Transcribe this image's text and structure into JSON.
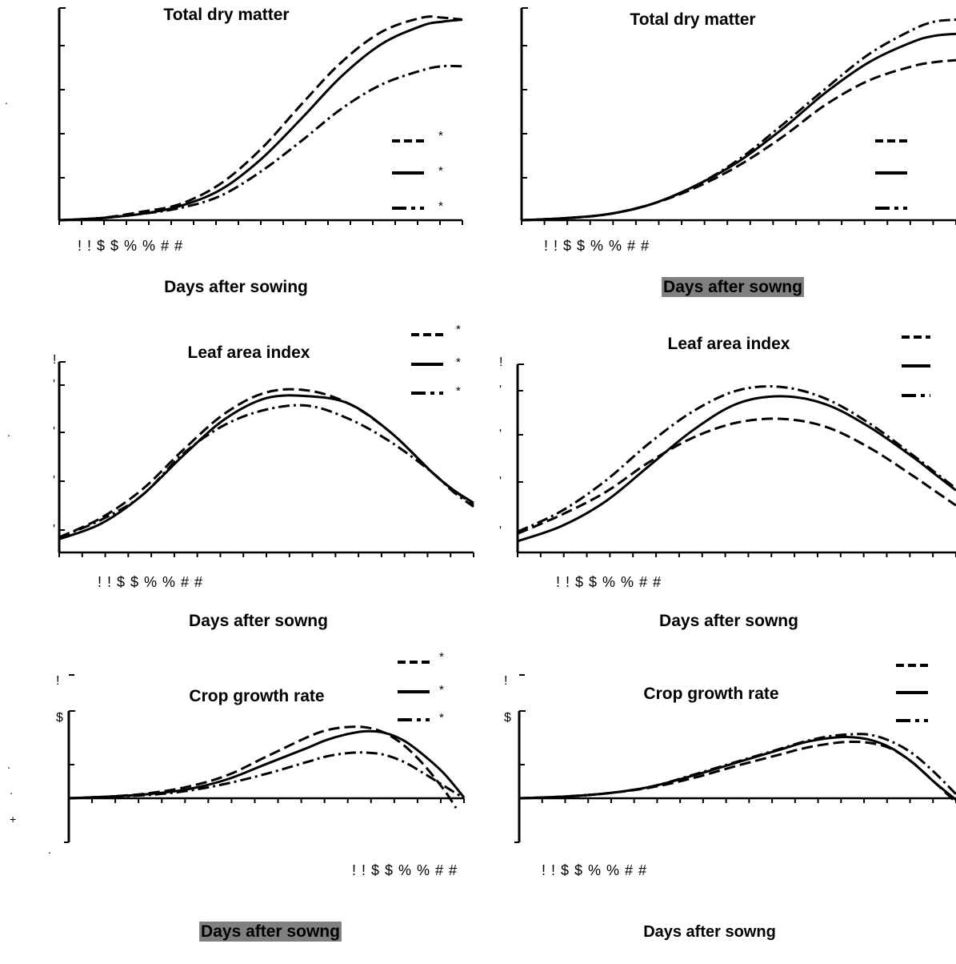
{
  "figure": {
    "stray_marks": [
      ".",
      ".",
      ".",
      ".",
      "+",
      "."
    ]
  },
  "chart_data": [
    {
      "type": "line",
      "title": "Total dry matter",
      "xlabel": "Days after sowing",
      "xlabel_highlight": false,
      "x_tick_text": "! ! $ $ % % # #",
      "y_tick_labels": [],
      "xlim": [
        0,
        100
      ],
      "ylim": [
        0,
        100
      ],
      "legend": {
        "position": "right",
        "markers": [
          "*",
          "*",
          "*"
        ]
      },
      "series": [
        {
          "style": "dashed",
          "x": [
            0,
            10,
            20,
            30,
            40,
            50,
            60,
            70,
            80,
            90,
            95,
            100
          ],
          "y": [
            0,
            1,
            4,
            8,
            18,
            35,
            57,
            78,
            93,
            100,
            100,
            99
          ]
        },
        {
          "style": "solid",
          "x": [
            0,
            10,
            20,
            30,
            40,
            50,
            60,
            70,
            80,
            90,
            95,
            100
          ],
          "y": [
            0,
            1,
            3,
            7,
            15,
            30,
            50,
            71,
            87,
            96,
            98,
            99
          ]
        },
        {
          "style": "dashdot",
          "x": [
            0,
            10,
            20,
            30,
            40,
            50,
            60,
            70,
            80,
            90,
            95,
            100
          ],
          "y": [
            0,
            1,
            3,
            6,
            12,
            24,
            39,
            55,
            67,
            74,
            76,
            76
          ]
        }
      ]
    },
    {
      "type": "line",
      "title": "Total dry matter",
      "xlabel": "Days after sowng",
      "xlabel_highlight": true,
      "x_tick_text": "! ! $ $ % % # #",
      "y_tick_labels": [],
      "xlim": [
        0,
        100
      ],
      "ylim": [
        0,
        100
      ],
      "legend": {
        "position": "right",
        "markers": []
      },
      "series": [
        {
          "style": "dashed",
          "x": [
            0,
            10,
            20,
            30,
            40,
            50,
            60,
            70,
            80,
            90,
            95,
            100
          ],
          "y": [
            0,
            1,
            3,
            8,
            16,
            27,
            41,
            57,
            69,
            76,
            78,
            79
          ]
        },
        {
          "style": "solid",
          "x": [
            0,
            10,
            20,
            30,
            40,
            50,
            60,
            70,
            80,
            90,
            95,
            100
          ],
          "y": [
            0,
            1,
            3,
            8,
            17,
            29,
            45,
            63,
            78,
            88,
            91,
            92
          ]
        },
        {
          "style": "dashdot",
          "x": [
            0,
            10,
            20,
            30,
            40,
            50,
            60,
            70,
            80,
            90,
            95,
            100
          ],
          "y": [
            0,
            1,
            3,
            8,
            17,
            30,
            47,
            65,
            82,
            94,
            98,
            99
          ]
        }
      ]
    },
    {
      "type": "line",
      "title": "Leaf area index",
      "xlabel": "Days after sowng",
      "xlabel_highlight": false,
      "x_tick_text": "! ! $ $ % % # #",
      "y_tick_labels": [
        "!",
        "'",
        "'",
        "'",
        "'"
      ],
      "xlim": [
        0,
        100
      ],
      "ylim": [
        0,
        100
      ],
      "legend": {
        "position": "top-right",
        "markers": [
          "*",
          "*",
          "*"
        ]
      },
      "series": [
        {
          "style": "dashed",
          "x": [
            0,
            10,
            20,
            30,
            40,
            50,
            60,
            70,
            80,
            90,
            95,
            100
          ],
          "y": [
            8,
            18,
            33,
            54,
            73,
            84,
            85,
            78,
            63,
            42,
            33,
            25
          ]
        },
        {
          "style": "solid",
          "x": [
            0,
            10,
            20,
            30,
            40,
            50,
            60,
            70,
            80,
            90,
            95,
            100
          ],
          "y": [
            7,
            15,
            30,
            51,
            70,
            81,
            82,
            78,
            63,
            42,
            33,
            26
          ]
        },
        {
          "style": "dashdot",
          "x": [
            0,
            10,
            20,
            30,
            40,
            50,
            60,
            70,
            80,
            90,
            95,
            100
          ],
          "y": [
            8,
            17,
            30,
            52,
            67,
            75,
            77,
            70,
            58,
            42,
            32,
            24
          ]
        }
      ]
    },
    {
      "type": "line",
      "title": "Leaf area index",
      "xlabel": "Days after sowng",
      "xlabel_highlight": false,
      "x_tick_text": "! ! $ $ % % # #",
      "y_tick_labels": [
        "!",
        "'",
        "'",
        "'",
        "'"
      ],
      "xlim": [
        0,
        100
      ],
      "ylim": [
        0,
        100
      ],
      "legend": {
        "position": "top-right",
        "markers": []
      },
      "series": [
        {
          "style": "dashed",
          "x": [
            0,
            10,
            20,
            30,
            40,
            50,
            60,
            70,
            80,
            90,
            95,
            100
          ],
          "y": [
            10,
            20,
            32,
            48,
            61,
            69,
            71,
            67,
            56,
            41,
            33,
            25
          ]
        },
        {
          "style": "solid",
          "x": [
            0,
            10,
            20,
            30,
            40,
            50,
            60,
            70,
            80,
            90,
            95,
            100
          ],
          "y": [
            6,
            14,
            27,
            46,
            65,
            79,
            83,
            79,
            67,
            51,
            42,
            33
          ]
        },
        {
          "style": "dashdot",
          "x": [
            0,
            10,
            20,
            30,
            40,
            50,
            60,
            70,
            80,
            90,
            95,
            100
          ],
          "y": [
            11,
            22,
            38,
            58,
            75,
            86,
            88,
            82,
            69,
            52,
            43,
            34
          ]
        }
      ]
    },
    {
      "type": "line",
      "title": "Crop growth rate",
      "xlabel": "Days after sowng",
      "xlabel_highlight": true,
      "x_tick_text": "! ! $ $ % % # #",
      "y_tick_labels": [
        "$",
        "!"
      ],
      "xlim": [
        0,
        100
      ],
      "ylim": [
        -20,
        100
      ],
      "legend": {
        "position": "top-right",
        "markers": [
          "*",
          "*",
          "*"
        ]
      },
      "series": [
        {
          "style": "dashed",
          "x": [
            0,
            10,
            20,
            30,
            40,
            50,
            60,
            65,
            70,
            75,
            80,
            85,
            90,
            95,
            98
          ],
          "y": [
            0,
            2,
            6,
            14,
            28,
            51,
            74,
            83,
            87,
            87,
            80,
            64,
            40,
            10,
            -12
          ]
        },
        {
          "style": "solid",
          "x": [
            0,
            10,
            20,
            30,
            40,
            50,
            60,
            65,
            70,
            75,
            80,
            85,
            90,
            95,
            100
          ],
          "y": [
            0,
            2,
            5,
            11,
            23,
            42,
            61,
            71,
            78,
            82,
            80,
            70,
            52,
            30,
            1
          ]
        },
        {
          "style": "dashdot",
          "x": [
            0,
            10,
            20,
            30,
            40,
            50,
            60,
            65,
            70,
            75,
            80,
            85,
            90,
            95,
            100
          ],
          "y": [
            0,
            2,
            4,
            9,
            18,
            30,
            44,
            51,
            55,
            56,
            53,
            44,
            30,
            15,
            0
          ]
        }
      ]
    },
    {
      "type": "line",
      "title": "Crop growth rate",
      "xlabel": "Days after sowng",
      "xlabel_highlight": false,
      "x_tick_text": "! ! $ $ % % # #",
      "y_tick_labels": [
        "$",
        "!"
      ],
      "xlim": [
        0,
        100
      ],
      "ylim": [
        -20,
        100
      ],
      "legend": {
        "position": "top-right",
        "markers": []
      },
      "series": [
        {
          "style": "dashed",
          "x": [
            0,
            10,
            20,
            30,
            40,
            50,
            60,
            65,
            70,
            75,
            80,
            85,
            90,
            95,
            100
          ],
          "y": [
            0,
            2,
            6,
            13,
            25,
            40,
            54,
            61,
            66,
            69,
            68,
            61,
            44,
            20,
            -5
          ]
        },
        {
          "style": "solid",
          "x": [
            0,
            10,
            20,
            30,
            40,
            50,
            60,
            65,
            70,
            75,
            80,
            85,
            90,
            95,
            100
          ],
          "y": [
            0,
            2,
            6,
            14,
            28,
            44,
            60,
            68,
            73,
            75,
            72,
            62,
            44,
            20,
            -2
          ]
        },
        {
          "style": "dashdot",
          "x": [
            0,
            10,
            20,
            30,
            40,
            50,
            60,
            65,
            70,
            75,
            80,
            85,
            90,
            95,
            100
          ],
          "y": [
            0,
            2,
            6,
            14,
            29,
            45,
            61,
            69,
            75,
            78,
            78,
            70,
            55,
            32,
            5
          ]
        }
      ]
    }
  ]
}
